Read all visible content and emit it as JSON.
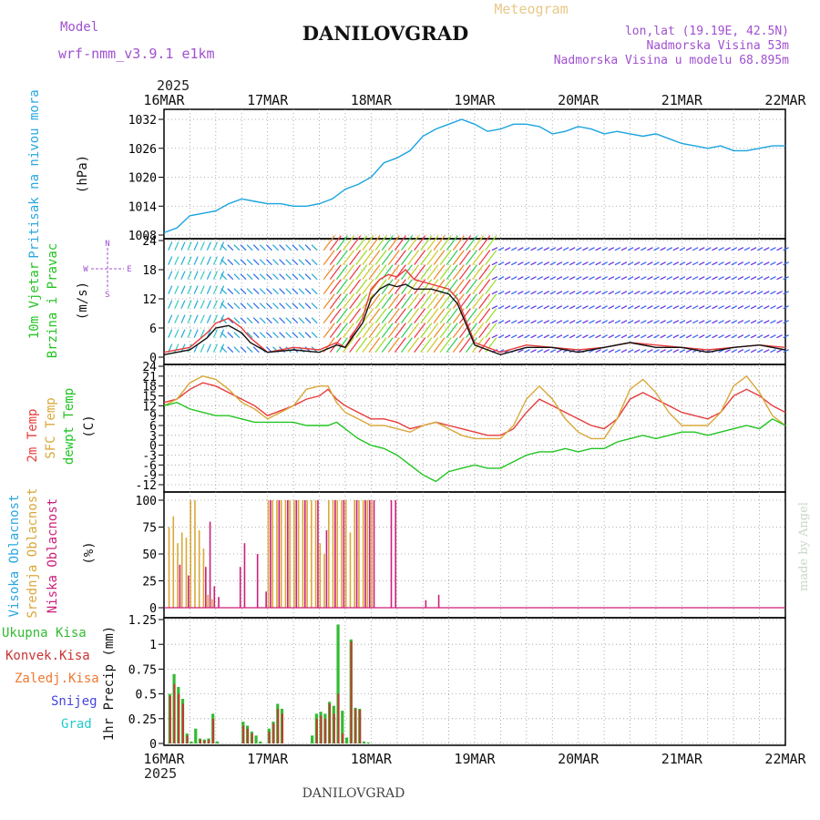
{
  "header": {
    "model_label": "Model",
    "model_name": "wrf-nmm_v3.9.1 e1km",
    "title": "DANILOVGRAD",
    "meteogram_label": "Meteogram",
    "lonlat": "lon,lat (19.19E, 42.5N)",
    "altitude": "Nadmorska Visina 53m",
    "model_altitude": "Nadmorska Visina u modelu 68.895m",
    "footer_name": "DANILOVGRAD",
    "credit": "made by Angel"
  },
  "time_axis": {
    "year": "2025",
    "ticks": [
      "16MAR",
      "17MAR",
      "18MAR",
      "19MAR",
      "20MAR",
      "21MAR",
      "22MAR"
    ],
    "range_hours": [
      0,
      144
    ]
  },
  "colors": {
    "pressure": "#1aa3e0",
    "temp2m": "#e83c3c",
    "sfc": "#d9a83a",
    "dew": "#22c422",
    "high_cloud": "#29a8e0",
    "mid_cloud": "#d9a83a",
    "low_cloud": "#cc1f7a",
    "total_precip": "#33bb33",
    "conv_precip": "#cc3333",
    "frozen": "#f07830",
    "snow": "#4444dd",
    "hail": "#22cccc",
    "grid": "#999999",
    "label_purple": "#a050d0",
    "title_gold": "#e8c888"
  },
  "chart_data": [
    {
      "id": "pressure",
      "type": "line",
      "ylabel_left": "Pritisak na nivou mora",
      "ylabel_unit": "(hPa)",
      "ylim": [
        1008,
        1032
      ],
      "yticks": [
        "1032",
        "1026",
        "1020",
        "1014",
        "1008"
      ],
      "ytick_values": [
        1032,
        1026,
        1020,
        1014,
        1008
      ],
      "series": [
        {
          "x": [
            0,
            3,
            6,
            9,
            12,
            15,
            18,
            21,
            24,
            27,
            30,
            33,
            36,
            39,
            42,
            45,
            48,
            51,
            54,
            57,
            60,
            63,
            66,
            69,
            72,
            75,
            78,
            81,
            84,
            87,
            90,
            93,
            96,
            99,
            102,
            105,
            108,
            111,
            114,
            117,
            120,
            123,
            126,
            129,
            132,
            135,
            138,
            141,
            144
          ],
          "y": [
            1008.5,
            1009.5,
            1012,
            1012.5,
            1013,
            1014.5,
            1015.5,
            1015,
            1014.5,
            1014.5,
            1014,
            1014,
            1014.5,
            1015.5,
            1017.5,
            1018.5,
            1020,
            1023,
            1024,
            1025.5,
            1028.5,
            1030,
            1031,
            1032,
            1031,
            1029.5,
            1030,
            1031,
            1031,
            1030.5,
            1029,
            1029.5,
            1030.5,
            1030,
            1029,
            1029.5,
            1029,
            1028.5,
            1029,
            1028,
            1027,
            1026.5,
            1026,
            1026.5,
            1025.5,
            1025.5,
            1026,
            1026.5,
            1026.5
          ]
        }
      ]
    },
    {
      "id": "wind",
      "type": "line",
      "ylabel_left": [
        "10m Vjetar",
        "Brzina i Pravac"
      ],
      "ylabel_unit": "(m/s)",
      "compass": [
        "N",
        "W",
        "E",
        "S"
      ],
      "ylim": [
        0,
        24
      ],
      "yticks": [
        "24",
        "18",
        "12",
        "6",
        "0"
      ],
      "ytick_values": [
        24,
        18,
        12,
        6,
        0
      ],
      "series": [
        {
          "name": "red",
          "x": [
            0,
            6,
            10,
            12,
            15,
            18,
            20,
            24,
            30,
            36,
            40,
            42,
            46,
            48,
            50,
            52,
            54,
            56,
            58,
            62,
            66,
            68,
            72,
            78,
            84,
            90,
            96,
            102,
            108,
            114,
            120,
            126,
            132,
            138,
            144
          ],
          "y": [
            1,
            2,
            5,
            7,
            8,
            6,
            4,
            1,
            2,
            1.5,
            3,
            2,
            8,
            14,
            16,
            17,
            16.5,
            18,
            16,
            15,
            14,
            12,
            3,
            1,
            2.5,
            2,
            1.5,
            2,
            3,
            2.5,
            2,
            1.5,
            2,
            2.5,
            2
          ]
        },
        {
          "name": "black",
          "x": [
            0,
            6,
            10,
            12,
            15,
            18,
            20,
            24,
            30,
            36,
            40,
            42,
            46,
            48,
            50,
            52,
            54,
            56,
            58,
            62,
            66,
            68,
            72,
            78,
            84,
            90,
            96,
            102,
            108,
            114,
            120,
            126,
            132,
            138,
            144
          ],
          "y": [
            0.5,
            1.5,
            4,
            6,
            6.5,
            5,
            3,
            1,
            1.5,
            1,
            2.5,
            2,
            7,
            12,
            14,
            15,
            14.5,
            15,
            14,
            14,
            13,
            11,
            2.5,
            0.5,
            2,
            2,
            1,
            2,
            3,
            2,
            2,
            1,
            2,
            2.5,
            1.5
          ]
        }
      ]
    },
    {
      "id": "temperature",
      "type": "line",
      "ylabel_left": [
        "2m Temp",
        "SFC Temp",
        "dewpt Temp"
      ],
      "ylabel_unit": "(C)",
      "ylim": [
        -12,
        24
      ],
      "yticks": [
        "24",
        "21",
        "18",
        "15",
        "12",
        "9",
        "6",
        "3",
        "0",
        "-3",
        "-6",
        "-9",
        "-12"
      ],
      "ytick_values": [
        24,
        21,
        18,
        15,
        12,
        9,
        6,
        3,
        0,
        -3,
        -6,
        -9,
        -12
      ],
      "series": [
        {
          "name": "2m Temp",
          "x": [
            0,
            3,
            6,
            9,
            12,
            15,
            18,
            21,
            24,
            30,
            33,
            36,
            38,
            40,
            42,
            45,
            48,
            51,
            54,
            57,
            60,
            63,
            66,
            69,
            72,
            75,
            78,
            81,
            84,
            87,
            90,
            93,
            96,
            99,
            102,
            105,
            108,
            111,
            114,
            117,
            120,
            123,
            126,
            129,
            132,
            135,
            138,
            141,
            144
          ],
          "y": [
            13,
            14,
            17,
            19,
            18,
            16,
            14,
            12,
            9,
            12,
            14,
            15,
            17,
            14,
            12,
            10,
            8,
            8,
            7,
            5,
            6,
            7,
            6,
            5,
            4,
            3,
            3,
            5,
            10,
            14,
            12,
            10,
            8,
            6,
            5,
            8,
            14,
            16,
            14,
            12,
            10,
            9,
            8,
            10,
            15,
            17,
            15,
            12,
            10
          ]
        },
        {
          "name": "SFC Temp",
          "x": [
            0,
            3,
            6,
            9,
            12,
            15,
            18,
            21,
            24,
            30,
            33,
            36,
            38,
            40,
            42,
            45,
            48,
            51,
            54,
            57,
            60,
            63,
            66,
            69,
            72,
            75,
            78,
            81,
            84,
            87,
            90,
            93,
            96,
            99,
            102,
            105,
            108,
            111,
            114,
            117,
            120,
            123,
            126,
            129,
            132,
            135,
            138,
            141,
            144
          ],
          "y": [
            12,
            14,
            19,
            21,
            20,
            17,
            13,
            11,
            8,
            12,
            17,
            18,
            18,
            13,
            10,
            8,
            6,
            6,
            5,
            4,
            6,
            7,
            5,
            3,
            2,
            2,
            2,
            6,
            14,
            18,
            14,
            8,
            4,
            2,
            2,
            8,
            17,
            20,
            16,
            10,
            6,
            6,
            6,
            10,
            18,
            21,
            16,
            9,
            6
          ]
        },
        {
          "name": "dewpt Temp",
          "x": [
            0,
            3,
            6,
            9,
            12,
            15,
            18,
            21,
            24,
            30,
            33,
            36,
            38,
            40,
            42,
            45,
            48,
            51,
            54,
            57,
            60,
            63,
            66,
            69,
            72,
            75,
            78,
            81,
            84,
            87,
            90,
            93,
            96,
            99,
            102,
            105,
            108,
            111,
            114,
            117,
            120,
            123,
            126,
            129,
            132,
            135,
            138,
            141,
            144
          ],
          "y": [
            12,
            13,
            11,
            10,
            9,
            9,
            8,
            7,
            7,
            7,
            6,
            6,
            6,
            7,
            5,
            2,
            0,
            -1,
            -3,
            -6,
            -9,
            -11,
            -8,
            -7,
            -6,
            -7,
            -7,
            -5,
            -3,
            -2,
            -2,
            -1,
            -2,
            -1,
            -1,
            1,
            2,
            3,
            2,
            3,
            4,
            4,
            3,
            4,
            5,
            6,
            5,
            8,
            6
          ]
        }
      ]
    },
    {
      "id": "cloud",
      "type": "bar",
      "ylabel_left": [
        "Visoka Oblacnost",
        "Srednja Oblacnost",
        "Niska Oblacnost"
      ],
      "ylabel_unit": "(%)",
      "ylim": [
        0,
        100
      ],
      "yticks": [
        "100",
        "75",
        "50",
        "25",
        "0"
      ],
      "ytick_values": [
        100,
        75,
        50,
        25,
        0
      ],
      "series": [
        {
          "name": "Srednja Oblacnost",
          "x": [
            1,
            2,
            3,
            4,
            5,
            6,
            7,
            8,
            9,
            10,
            11,
            24,
            25,
            26,
            27,
            28,
            29,
            30,
            31,
            32,
            33,
            34,
            35,
            36,
            37,
            38,
            39,
            40,
            41,
            42,
            43,
            44,
            45,
            46,
            47,
            48
          ],
          "values": [
            75,
            85,
            60,
            70,
            65,
            100,
            100,
            72,
            55,
            12,
            8,
            100,
            100,
            100,
            100,
            100,
            100,
            100,
            100,
            100,
            100,
            100,
            100,
            60,
            50,
            100,
            100,
            100,
            100,
            100,
            70,
            100,
            100,
            100,
            100,
            100
          ]
        },
        {
          "name": "Niska Oblacnost",
          "x": [
            3,
            5,
            9,
            10,
            11,
            12,
            17,
            18,
            21,
            23,
            24,
            26,
            28,
            30,
            32,
            35,
            37,
            39,
            41,
            44,
            46,
            47,
            48,
            52,
            53,
            60,
            63
          ],
          "values": [
            40,
            30,
            38,
            80,
            20,
            10,
            38,
            60,
            50,
            15,
            100,
            100,
            100,
            100,
            100,
            100,
            72,
            100,
            100,
            100,
            100,
            100,
            100,
            100,
            100,
            7,
            12
          ]
        }
      ]
    },
    {
      "id": "precip",
      "type": "bar",
      "ylabel_left": [
        "Ukupna Kisa",
        "Konvek.Kisa",
        "Zaledj.Kisa",
        "Snijeg",
        "Grad"
      ],
      "ylabel_unit": "1hr Precip (mm)",
      "ylim": [
        0,
        1.25
      ],
      "yticks": [
        "1.25",
        "1",
        "0.75",
        "0.5",
        "0.25",
        "0"
      ],
      "ytick_values": [
        1.25,
        1,
        0.75,
        0.5,
        0.25,
        0
      ],
      "series": [
        {
          "name": "Ukupna Kisa",
          "x": [
            1,
            2,
            3,
            4,
            5,
            6,
            7,
            8,
            9,
            10,
            11,
            12,
            18,
            19,
            20,
            21,
            22,
            24,
            25,
            26,
            27,
            34,
            35,
            36,
            37,
            38,
            39,
            40,
            41,
            42,
            43,
            44,
            45,
            46,
            47
          ],
          "values": [
            0.5,
            0.7,
            0.57,
            0.45,
            0.1,
            0.02,
            0.15,
            0.05,
            0.04,
            0.05,
            0.3,
            0.02,
            0.22,
            0.18,
            0.12,
            0.08,
            0.02,
            0.15,
            0.22,
            0.4,
            0.35,
            0.08,
            0.3,
            0.32,
            0.3,
            0.42,
            0.38,
            1.2,
            0.33,
            0.06,
            1.05,
            0.36,
            0.35,
            0.02,
            0.01
          ]
        },
        {
          "name": "Konvek.Kisa",
          "x": [
            1,
            2,
            3,
            4,
            5,
            8,
            9,
            10,
            11,
            18,
            19,
            20,
            24,
            25,
            26,
            27,
            35,
            36,
            37,
            38,
            39,
            40,
            41,
            43,
            44,
            45
          ],
          "values": [
            0.48,
            0.6,
            0.5,
            0.4,
            0.08,
            0.04,
            0.03,
            0.04,
            0.25,
            0.18,
            0.15,
            0.1,
            0.12,
            0.2,
            0.35,
            0.3,
            0.25,
            0.28,
            0.25,
            0.4,
            0.3,
            0.5,
            0.1,
            1.03,
            0.35,
            0.34
          ]
        }
      ]
    }
  ]
}
